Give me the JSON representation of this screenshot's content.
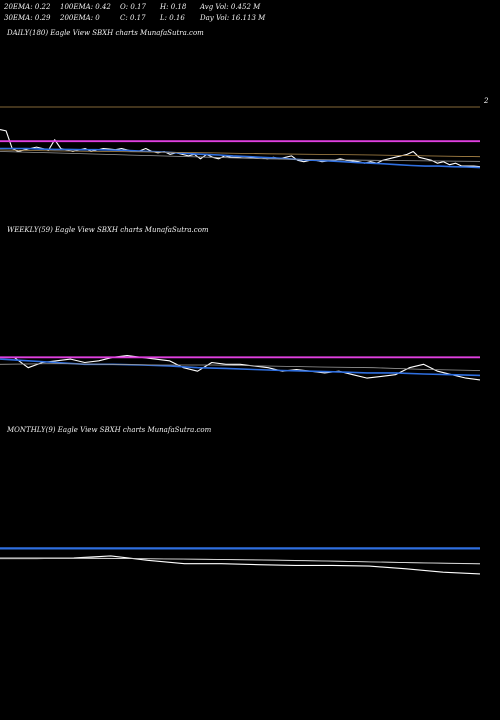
{
  "header": {
    "ema20": "20EMA: 0.22",
    "ema100": "100EMA: 0.42",
    "open": "O: 0.17",
    "high": "H: 0.18",
    "avg_vol": "Avg Vol: 0.452  M",
    "ema30": "30EMA: 0.29",
    "ema200": "200EMA: 0",
    "close": "C: 0.17",
    "low": "L: 0.16",
    "day_vol": "Day Vol: 16.113 M"
  },
  "panels": {
    "daily": "DAILY(180) Eagle   View  SBXH charts MunafaSutra.com",
    "weekly": "WEEKLY(59) Eagle   View  SBXH charts MunafaSutra.com",
    "monthly": "MONTHLY(9) Eagle   View  SBXH charts MunafaSutra.com"
  },
  "daily_axis_label": "2",
  "colors": {
    "background": "#000000",
    "price": "#ffffff",
    "ema_blue": "#2f6fe0",
    "ema_magenta": "#e040e0",
    "ema_gray": "#9a9a9a",
    "ema_tan": "#b08a4a"
  },
  "chart_data": [
    {
      "type": "line",
      "title": "DAILY(180) Eagle   View  SBXH charts MunafaSutra.com",
      "series": [
        {
          "values": [
            0.95,
            0.9,
            0.3,
            0.2,
            0.25,
            0.3,
            0.35,
            0.3,
            0.25,
            0.6,
            0.3,
            0.25,
            0.2,
            0.25,
            0.3,
            0.2,
            0.25,
            0.3,
            0.28,
            0.26,
            0.3,
            0.25,
            0.2,
            0.22,
            0.3,
            0.2,
            0.15,
            0.2,
            0.1,
            0.15,
            0.1,
            0.05,
            0.1,
            -0.05,
            0.1,
            0.0,
            -0.05,
            0.05,
            0.0,
            0.0,
            0.02,
            0.0,
            -0.02,
            0.0,
            -0.05,
            0.0,
            -0.05,
            0.0,
            0.05,
            -0.1,
            -0.15,
            -0.1,
            -0.1,
            -0.15,
            -0.12,
            -0.1,
            -0.05,
            -0.1,
            -0.12,
            -0.15,
            -0.2,
            -0.15,
            -0.2,
            -0.1,
            -0.05,
            0.0,
            0.05,
            0.1,
            0.2,
            0.0,
            -0.05,
            -0.1,
            -0.2,
            -0.15,
            -0.25,
            -0.2,
            -0.3,
            -0.3,
            -0.3,
            -0.32
          ]
        },
        {
          "values": [
            0.3,
            0.3,
            0.3,
            0.28,
            0.27,
            0.27,
            0.26,
            0.26,
            0.25,
            0.24,
            0.22,
            0.2,
            0.18,
            0.15,
            0.12,
            0.1,
            0.08,
            0.05,
            0.03,
            0.0,
            -0.02,
            -0.05,
            -0.08,
            -0.1,
            -0.12,
            -0.15,
            -0.18,
            -0.2,
            -0.22,
            -0.25,
            -0.28,
            -0.3,
            -0.3,
            -0.32,
            -0.33,
            -0.35
          ]
        },
        {
          "values": [
            0.55,
            0.55,
            0.55,
            0.55,
            0.55,
            0.55
          ]
        },
        {
          "values": [
            0.2,
            0.15,
            0.1,
            0.05,
            0.0,
            -0.05,
            -0.08,
            -0.1,
            -0.12,
            -0.14
          ]
        },
        {
          "values": [
            0.25,
            0.22,
            0.2,
            0.18,
            0.15,
            0.12,
            0.1,
            0.08,
            0.05,
            0.02
          ]
        }
      ]
    },
    {
      "type": "line",
      "title": "WEEKLY(59) Eagle   View  SBXH charts MunafaSutra.com",
      "series": [
        {
          "values": [
            0.5,
            0.5,
            0.2,
            0.35,
            0.4,
            0.45,
            0.35,
            0.4,
            0.5,
            0.55,
            0.5,
            0.45,
            0.4,
            0.2,
            0.1,
            0.35,
            0.3,
            0.3,
            0.25,
            0.2,
            0.1,
            0.15,
            0.1,
            0.05,
            0.1,
            0.0,
            -0.1,
            -0.05,
            0.0,
            0.2,
            0.3,
            0.1,
            0.0,
            -0.1,
            -0.15
          ]
        },
        {
          "values": [
            0.45,
            0.4,
            0.35,
            0.3,
            0.3,
            0.28,
            0.25,
            0.2,
            0.18,
            0.15,
            0.12,
            0.1,
            0.08,
            0.05,
            0.05,
            0.02,
            0.0,
            -0.02
          ]
        },
        {
          "values": [
            0.5,
            0.5,
            0.5,
            0.5
          ]
        },
        {
          "values": [
            0.3,
            0.32,
            0.3,
            0.28,
            0.28,
            0.25,
            0.22,
            0.2,
            0.15,
            0.12
          ]
        }
      ]
    },
    {
      "type": "line",
      "title": "MONTHLY(9) Eagle   View  SBXH charts MunafaSutra.com",
      "series": [
        {
          "values": [
            0.6,
            0.6,
            0.62,
            0.68,
            0.55,
            0.45,
            0.45,
            0.42,
            0.4,
            0.4,
            0.38,
            0.3,
            0.2,
            0.15
          ]
        },
        {
          "values": [
            0.9,
            0.9,
            0.9
          ]
        },
        {
          "values": [
            0.6,
            0.6,
            0.6,
            0.58,
            0.55,
            0.52,
            0.48,
            0.44
          ]
        },
        {
          "values": [
            0.62,
            0.62,
            0.6,
            0.58,
            0.56,
            0.52,
            0.48,
            0.45
          ]
        }
      ]
    }
  ]
}
